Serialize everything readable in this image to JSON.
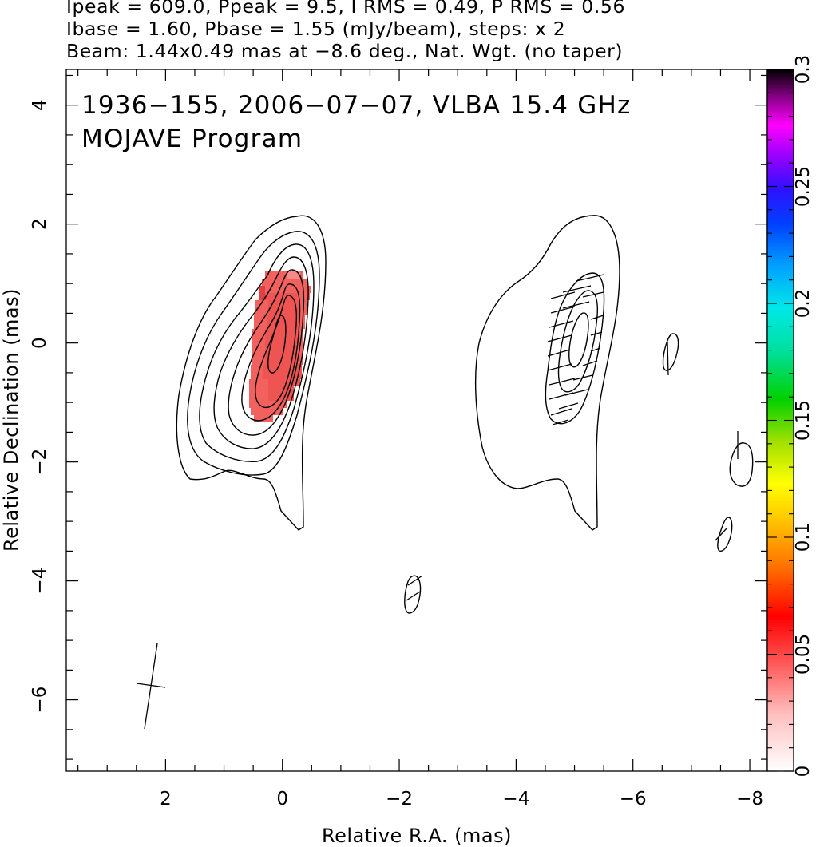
{
  "header": {
    "line1": "Ipeak = 609.0, Ppeak = 9.5, I RMS = 0.49, P RMS = 0.56",
    "line2": "Ibase = 1.60, Pbase = 1.55 (mJy/beam), steps: x 2",
    "line3": "Beam: 1.44x0.49 mas at −8.6 deg., Nat. Wgt. (no taper)"
  },
  "plot": {
    "title_line1": "1936−155, 2006−07−07, VLBA 15.4 GHz",
    "title_line2": "MOJAVE Program"
  },
  "chart_data": {
    "type": "contour",
    "xlabel": "Relative R.A. (mas)",
    "ylabel": "Relative Declination (mas)",
    "xlim": [
      3.7,
      -8.3
    ],
    "ylim": [
      -7.2,
      4.6
    ],
    "x_ticks": [
      2,
      0,
      -2,
      -4,
      -6,
      -8
    ],
    "x_tick_labels": [
      "2",
      "0",
      "−2",
      "−4",
      "−6",
      "−8"
    ],
    "y_ticks": [
      4,
      2,
      0,
      -2,
      -4,
      -6
    ],
    "y_tick_labels": [
      "4",
      "2",
      "0",
      "−2",
      "−4",
      "−6"
    ],
    "colorbar": {
      "range": [
        0,
        0.3
      ],
      "ticks": [
        0,
        0.05,
        0.1,
        0.15,
        0.2,
        0.25,
        0.3
      ],
      "tick_labels": [
        "0",
        "0.05",
        "0.1",
        "0.15",
        "0.2",
        "0.25",
        "0.3"
      ]
    },
    "colors": {
      "contour": "#000000",
      "polarization_fill": "#f2615e"
    },
    "panels": [
      {
        "name": "total intensity with fractional polarization",
        "center": [
          0,
          0
        ]
      },
      {
        "name": "polarized intensity with EVPA vectors",
        "center": [
          -5,
          0
        ]
      }
    ],
    "ipeak": 609.0,
    "ppeak": 9.5,
    "i_rms": 0.49,
    "p_rms": 0.56,
    "ibase": 1.6,
    "pbase": 1.55,
    "units": "mJy/beam",
    "contour_step": "x 2",
    "beam": {
      "major_mas": 1.44,
      "minor_mas": 0.49,
      "pa_deg": -8.6,
      "weighting": "Nat. Wgt. (no taper)"
    }
  }
}
